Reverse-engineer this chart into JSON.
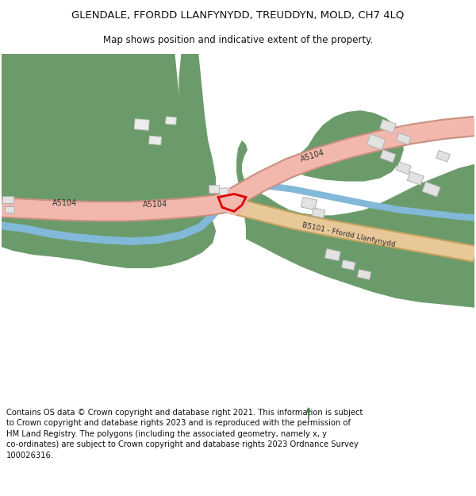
{
  "title": "GLENDALE, FFORDD LLANFYNYDD, TREUDDYN, MOLD, CH7 4LQ",
  "subtitle": "Map shows position and indicative extent of the property.",
  "footer": "Contains OS data © Crown copyright and database right 2021. This information is subject\nto Crown copyright and database rights 2023 and is reproduced with the permission of\nHM Land Registry. The polygons (including the associated geometry, namely x, y\nco-ordinates) are subject to Crown copyright and database rights 2023 Ordnance Survey\n100026316.",
  "bg_color": "#ffffff",
  "map_bg": "#f8f8f8",
  "green_color": "#6b9b6b",
  "blue_color": "#82b8d8",
  "road_a_color": "#f2b8ae",
  "road_b_color": "#e8c898",
  "building_color": "#e2e2e2",
  "building_outline": "#b8b8b8",
  "red_outline": "#dd0000",
  "north_arrow_color": "#4a7a4a",
  "title_fontsize": 9.5,
  "subtitle_fontsize": 8.5,
  "footer_fontsize": 7.2
}
